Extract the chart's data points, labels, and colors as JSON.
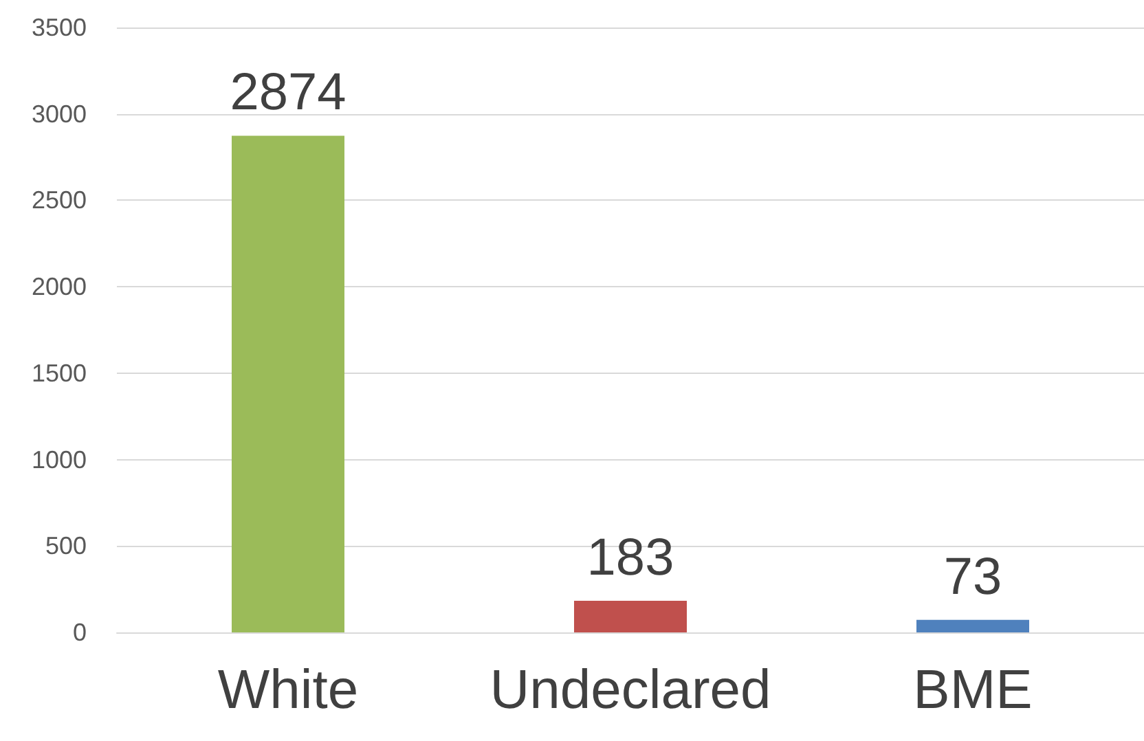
{
  "chart_data": {
    "type": "bar",
    "categories": [
      "White",
      "Undeclared",
      "BME"
    ],
    "values": [
      2874,
      183,
      73
    ],
    "colors": [
      "#9bbb59",
      "#c0504d",
      "#4f81bd"
    ],
    "ylim": [
      0,
      3500
    ],
    "yticks": [
      0,
      500,
      1000,
      1500,
      2000,
      2500,
      3000,
      3500
    ],
    "grid": "y",
    "data_labels": true
  }
}
